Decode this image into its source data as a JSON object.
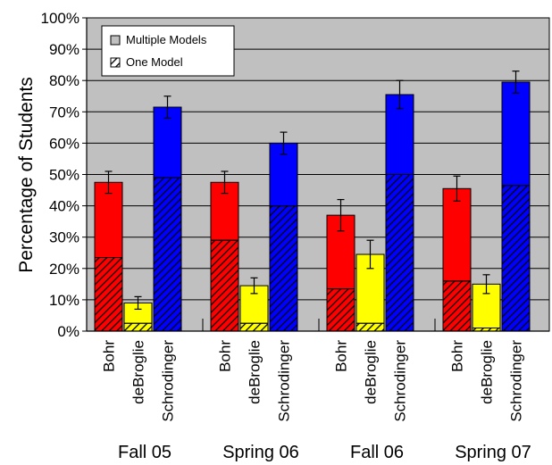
{
  "chart_data": {
    "type": "bar",
    "ylabel": "Percentage of Students",
    "ylim": [
      0,
      100
    ],
    "yticks": [
      "0%",
      "10%",
      "20%",
      "30%",
      "40%",
      "50%",
      "60%",
      "70%",
      "80%",
      "90%",
      "100%"
    ],
    "grid": true,
    "legend_position": "top-left",
    "legend": [
      {
        "key": "multiple",
        "label": "Multiple Models",
        "pattern": "solid-gray"
      },
      {
        "key": "one",
        "label": "One Model",
        "pattern": "hatched"
      }
    ],
    "categories": [
      "Bohr",
      "deBroglie",
      "Schrodinger"
    ],
    "category_colors": {
      "Bohr": "#ff0000",
      "deBroglie": "#ffff00",
      "Schrodinger": "#0000ff"
    },
    "groups": [
      {
        "label": "Fall 05",
        "bars": [
          {
            "category": "Bohr",
            "multiple_models": 47.5,
            "one_model": 23.5,
            "error": 3.5
          },
          {
            "category": "deBroglie",
            "multiple_models": 9,
            "one_model": 2.5,
            "error": 2
          },
          {
            "category": "Schrodinger",
            "multiple_models": 71.5,
            "one_model": 49,
            "error": 3.5
          }
        ]
      },
      {
        "label": "Spring 06",
        "bars": [
          {
            "category": "Bohr",
            "multiple_models": 47.5,
            "one_model": 29,
            "error": 3.5
          },
          {
            "category": "deBroglie",
            "multiple_models": 14.5,
            "one_model": 2.5,
            "error": 2.5
          },
          {
            "category": "Schrodinger",
            "multiple_models": 60,
            "one_model": 40,
            "error": 3.5
          }
        ]
      },
      {
        "label": "Fall 06",
        "bars": [
          {
            "category": "Bohr",
            "multiple_models": 37,
            "one_model": 13.5,
            "error": 5
          },
          {
            "category": "deBroglie",
            "multiple_models": 24.5,
            "one_model": 2.5,
            "error": 4.5
          },
          {
            "category": "Schrodinger",
            "multiple_models": 75.5,
            "one_model": 50,
            "error": 4.5
          }
        ]
      },
      {
        "label": "Spring 07",
        "bars": [
          {
            "category": "Bohr",
            "multiple_models": 45.5,
            "one_model": 16,
            "error": 4
          },
          {
            "category": "deBroglie",
            "multiple_models": 15,
            "one_model": 1,
            "error": 3
          },
          {
            "category": "Schrodinger",
            "multiple_models": 79.5,
            "one_model": 46.5,
            "error": 3.5
          }
        ]
      }
    ]
  }
}
